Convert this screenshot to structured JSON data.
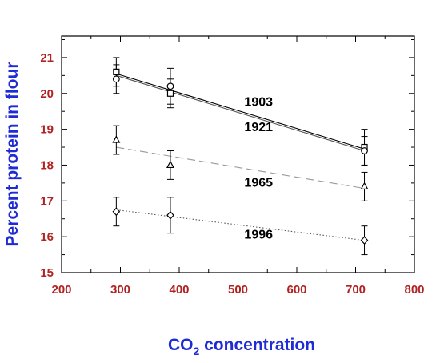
{
  "chart_data": {
    "type": "scatter",
    "xlabel_main": "CO",
    "xlabel_sub": "2",
    "xlabel_rest": " concentration",
    "ylabel": "Percent protein in flour",
    "xlim": [
      200,
      800
    ],
    "ylim": [
      15,
      21.6
    ],
    "x_ticks": [
      "200",
      "300",
      "400",
      "500",
      "600",
      "700",
      "800"
    ],
    "y_ticks": [
      "15",
      "16",
      "17",
      "18",
      "19",
      "20",
      "21"
    ],
    "grid": false,
    "tick_label_color": "#b22222",
    "axis_title_color": "#1f2bd6",
    "series": [
      {
        "name": "1903",
        "marker": "square",
        "line_style": "solid",
        "line_color": "#000000",
        "x": [
          293,
          385,
          715
        ],
        "y": [
          20.6,
          20.0,
          18.5
        ],
        "err": [
          0.4,
          0.4,
          0.5
        ],
        "fit": [
          [
            293,
            20.55
          ],
          [
            715,
            18.45
          ]
        ]
      },
      {
        "name": "1921",
        "marker": "circle",
        "line_style": "solid",
        "line_color": "#555555",
        "x": [
          293,
          385,
          715
        ],
        "y": [
          20.4,
          20.2,
          18.4
        ],
        "err": [
          0.4,
          0.5,
          0.4
        ],
        "fit": [
          [
            293,
            20.5
          ],
          [
            715,
            18.4
          ]
        ]
      },
      {
        "name": "1965",
        "marker": "triangle",
        "line_style": "dashed",
        "line_color": "#999999",
        "x": [
          293,
          385,
          715
        ],
        "y": [
          18.7,
          18.0,
          17.4
        ],
        "err": [
          0.4,
          0.4,
          0.4
        ],
        "fit": [
          [
            293,
            18.5
          ],
          [
            715,
            17.35
          ]
        ]
      },
      {
        "name": "1996",
        "marker": "diamond",
        "line_style": "dotted",
        "line_color": "#555555",
        "x": [
          293,
          385,
          715
        ],
        "y": [
          16.7,
          16.6,
          15.9
        ],
        "err": [
          0.4,
          0.5,
          0.4
        ],
        "fit": [
          [
            293,
            16.75
          ],
          [
            715,
            15.9
          ]
        ]
      }
    ],
    "annotations": [
      {
        "text": "1903",
        "x": 535,
        "y": 19.65
      },
      {
        "text": "1921",
        "x": 535,
        "y": 18.95
      },
      {
        "text": "1965",
        "x": 535,
        "y": 17.4
      },
      {
        "text": "1996",
        "x": 535,
        "y": 15.95
      }
    ]
  }
}
